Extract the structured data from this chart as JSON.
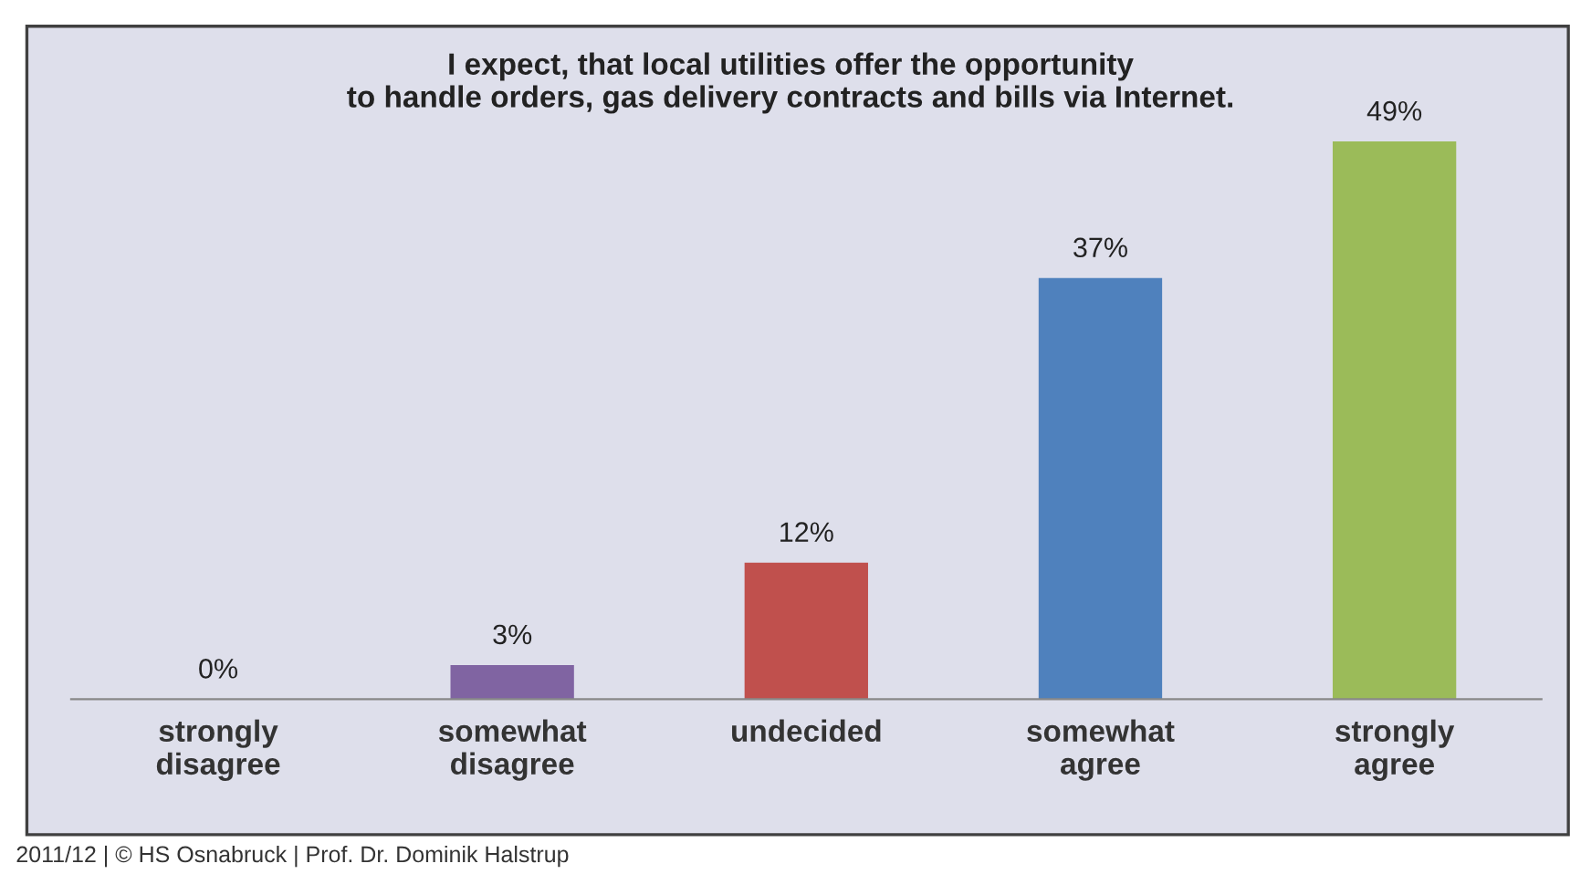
{
  "chart_data": {
    "type": "bar",
    "title": "I expect, that local utilities offer the opportunity\nto handle orders, gas delivery contracts and bills via Internet.",
    "categories": [
      "strongly\ndisagree",
      "somewhat\ndisagree",
      "undecided",
      "somewhat\nagree",
      "strongly\nagree"
    ],
    "values": [
      0,
      3,
      12,
      37,
      49
    ],
    "value_labels": [
      "0%",
      "3%",
      "12%",
      "37%",
      "49%"
    ],
    "colors": [
      "#4f81bd",
      "#8064a2",
      "#c0504d",
      "#4f81bd",
      "#9bbb59"
    ],
    "grid": false,
    "legend": false,
    "annotations": [
      "2011/12 | © HS Osnabruck | Prof. Dr. Dominik Halstrup"
    ]
  }
}
